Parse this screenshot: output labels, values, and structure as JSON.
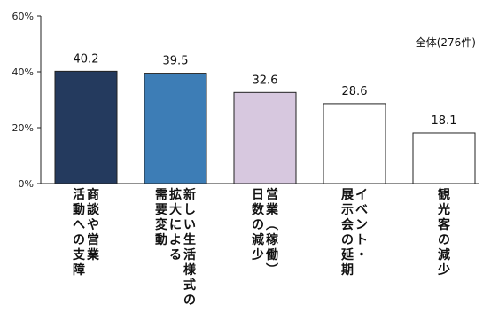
{
  "chart_data": {
    "type": "bar",
    "note": "全体(276件)",
    "yaxis": {
      "min": 0,
      "max": 60,
      "ticks": [
        0,
        20,
        40,
        60
      ],
      "tick_labels": [
        "0%",
        "20%",
        "40%",
        "60%"
      ]
    },
    "grid": false,
    "categories": [
      {
        "label": "商談や営業活動への支障",
        "label_lines": [
          "商談や営業",
          "活動への支障"
        ],
        "value": 40.2,
        "value_label": "40.2",
        "color": "#243a5e"
      },
      {
        "label": "新しい生活様式の拡大による需要変動",
        "label_lines": [
          "新しい生活様式の",
          "拡大による",
          "需要変動"
        ],
        "value": 39.5,
        "value_label": "39.5",
        "color": "#3d7db6"
      },
      {
        "label": "営業(稼働)日数の減少",
        "label_lines": [
          "営業︵稼働︶",
          "日数の減少"
        ],
        "value": 32.6,
        "value_label": "32.6",
        "color": "#d7c8df"
      },
      {
        "label": "イベント・展示会の延期",
        "label_lines": [
          "イベント・",
          "展示会の延期"
        ],
        "value": 28.6,
        "value_label": "28.6",
        "color": "#ffffff"
      },
      {
        "label": "観光客の減少",
        "label_lines": [
          "観光客の減少"
        ],
        "value": 18.1,
        "value_label": "18.1",
        "color": "#ffffff"
      }
    ]
  }
}
